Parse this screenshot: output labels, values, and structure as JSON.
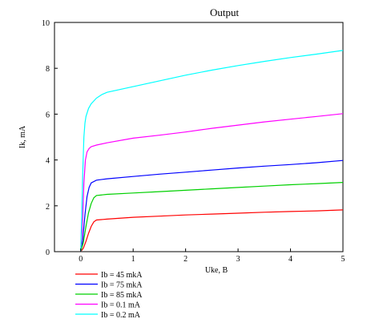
{
  "chart_data": {
    "type": "line",
    "title": "Output",
    "xlabel": "Uke, B",
    "ylabel": "Ik, mA",
    "xlim": [
      -0.5,
      5
    ],
    "ylim": [
      0,
      10
    ],
    "xticks": [
      "0",
      "1",
      "2",
      "3",
      "4",
      "5"
    ],
    "yticks": [
      "0",
      "2",
      "4",
      "6",
      "8",
      "10"
    ],
    "grid": false,
    "legend_position": "bottom-left",
    "series": [
      {
        "name": "Ib = 45 mkA",
        "color": "#ff0000",
        "x": [
          0,
          0.05,
          0.1,
          0.15,
          0.2,
          0.25,
          0.3,
          0.5,
          1,
          1.5,
          2,
          2.5,
          3,
          3.5,
          4,
          4.5,
          5
        ],
        "y": [
          0,
          0.15,
          0.45,
          0.8,
          1.1,
          1.3,
          1.38,
          1.42,
          1.5,
          1.55,
          1.6,
          1.64,
          1.68,
          1.72,
          1.75,
          1.78,
          1.82
        ]
      },
      {
        "name": "Ib = 75 mkA",
        "color": "#0000ff",
        "x": [
          0,
          0.04,
          0.08,
          0.12,
          0.16,
          0.2,
          0.3,
          0.5,
          1,
          1.5,
          2,
          2.5,
          3,
          3.5,
          4,
          4.5,
          5
        ],
        "y": [
          0,
          0.5,
          1.6,
          2.4,
          2.8,
          3.0,
          3.12,
          3.18,
          3.28,
          3.38,
          3.47,
          3.56,
          3.65,
          3.73,
          3.8,
          3.88,
          3.98
        ]
      },
      {
        "name": "Ib = 85 mkA",
        "color": "#00d000",
        "x": [
          0,
          0.05,
          0.1,
          0.15,
          0.2,
          0.25,
          0.3,
          0.5,
          1,
          1.5,
          2,
          2.5,
          3,
          3.5,
          4,
          4.5,
          5
        ],
        "y": [
          0,
          0.4,
          1.1,
          1.7,
          2.1,
          2.35,
          2.45,
          2.5,
          2.56,
          2.62,
          2.68,
          2.74,
          2.8,
          2.86,
          2.92,
          2.97,
          3.02
        ]
      },
      {
        "name": "Ib = 0.1 mA",
        "color": "#ff00ff",
        "x": [
          0,
          0.03,
          0.06,
          0.09,
          0.12,
          0.16,
          0.2,
          0.3,
          0.5,
          1,
          1.5,
          2,
          2.5,
          3,
          3.5,
          4,
          4.5,
          5
        ],
        "y": [
          0,
          1.0,
          3.0,
          4.0,
          4.35,
          4.5,
          4.58,
          4.65,
          4.75,
          4.95,
          5.08,
          5.22,
          5.38,
          5.52,
          5.66,
          5.78,
          5.9,
          6.02
        ]
      },
      {
        "name": "Ib = 0.2 mA",
        "color": "#00ffff",
        "x": [
          0,
          0.02,
          0.04,
          0.06,
          0.08,
          0.1,
          0.15,
          0.2,
          0.3,
          0.4,
          0.5,
          1,
          1.5,
          2,
          2.5,
          3,
          3.5,
          4,
          4.5,
          5
        ],
        "y": [
          0,
          1.5,
          3.5,
          5.0,
          5.6,
          5.9,
          6.25,
          6.45,
          6.7,
          6.85,
          6.95,
          7.2,
          7.45,
          7.7,
          7.92,
          8.12,
          8.3,
          8.47,
          8.62,
          8.78
        ]
      }
    ]
  }
}
